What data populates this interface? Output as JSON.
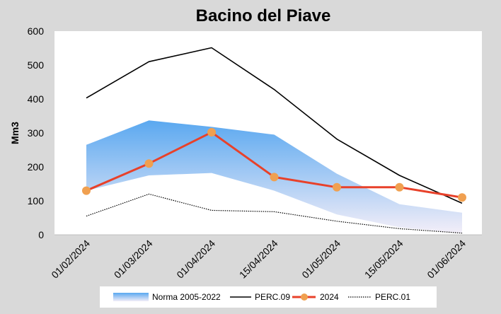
{
  "chart_data": {
    "type": "line",
    "title": "Bacino del Piave",
    "xlabel": "",
    "ylabel": "Mm3",
    "ylim": [
      0,
      600
    ],
    "yticks": [
      0,
      100,
      200,
      300,
      400,
      500,
      600
    ],
    "categories": [
      "01/02/2024",
      "01/03/2024",
      "01/04/2024",
      "15/04/2024",
      "01/05/2024",
      "15/05/2024",
      "01/06/2024"
    ],
    "band": {
      "name": "Norma 2005-2022",
      "lower": [
        130,
        175,
        182,
        130,
        60,
        22,
        5
      ],
      "upper": [
        265,
        337,
        318,
        295,
        180,
        90,
        65
      ],
      "color_top": "#5aa8f0",
      "color_bottom": "#f3eef8"
    },
    "series": [
      {
        "name": "PERC.09",
        "values": [
          403,
          510,
          551,
          428,
          282,
          175,
          93
        ],
        "color": "#000000",
        "style": "solid"
      },
      {
        "name": "2024",
        "values": [
          130,
          210,
          302,
          170,
          140,
          140,
          110
        ],
        "color": "#e8412a",
        "marker_color": "#f0a050",
        "style": "solid-marker"
      },
      {
        "name": "PERC.01",
        "values": [
          55,
          120,
          72,
          68,
          40,
          18,
          5
        ],
        "color": "#000000",
        "style": "dotted"
      }
    ],
    "grid": false,
    "legend_position": "bottom"
  }
}
